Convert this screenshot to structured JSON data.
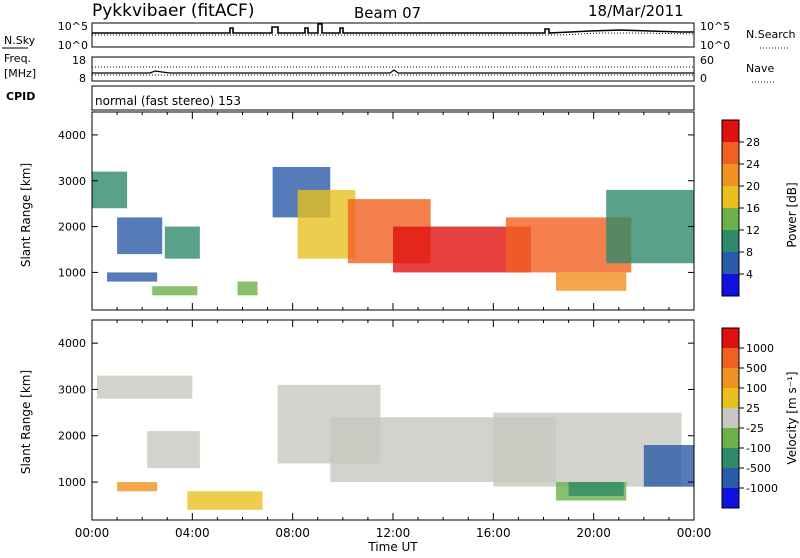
{
  "header": {
    "station": "Pykkvibaer (fitACF)",
    "beam": "Beam 07",
    "date": "18/Mar/2011"
  },
  "status_panels": {
    "noise_label": "N.Sky",
    "noise_right_label": "N.Search",
    "noise_ticks_left": [
      "10^5",
      "10^0"
    ],
    "noise_ticks_right": [
      "10^5",
      "10^0"
    ],
    "freq_label_1": "Freq.",
    "freq_label_2": "[MHz]",
    "freq_ticks": [
      "18",
      "8"
    ],
    "nave_label": "Nave",
    "nave_ticks": [
      "60",
      "0"
    ],
    "cpid_label": "CPID",
    "cpid_text": "normal (fast stereo) 153"
  },
  "chart_data": [
    {
      "type": "heatmap",
      "name": "power",
      "ylabel": "Slant Range [km]",
      "ylim": [
        180,
        4500
      ],
      "yticks": [
        1000,
        2000,
        3000,
        4000
      ],
      "xlim": [
        0,
        24
      ],
      "colorbar": {
        "title": "Power [dB]",
        "ticks": [
          "4",
          "8",
          "12",
          "16",
          "20",
          "24",
          "28"
        ],
        "colors": [
          "#1010e0",
          "#2a5aa8",
          "#2f8a6a",
          "#6cb04a",
          "#e8c020",
          "#f09020",
          "#f06020",
          "#e01010"
        ]
      },
      "regions": [
        {
          "x": [
            0.0,
            1.4
          ],
          "y": [
            2400,
            3200
          ],
          "level": 2
        },
        {
          "x": [
            1.0,
            2.8
          ],
          "y": [
            1400,
            2200
          ],
          "level": 1
        },
        {
          "x": [
            2.9,
            4.3
          ],
          "y": [
            1300,
            2000
          ],
          "level": 2
        },
        {
          "x": [
            0.6,
            2.6
          ],
          "y": [
            800,
            1000
          ],
          "level": 1
        },
        {
          "x": [
            2.4,
            4.2
          ],
          "y": [
            500,
            700
          ],
          "level": 3
        },
        {
          "x": [
            5.8,
            6.6
          ],
          "y": [
            500,
            800
          ],
          "level": 3
        },
        {
          "x": [
            7.2,
            9.5
          ],
          "y": [
            2200,
            3300
          ],
          "level": 1
        },
        {
          "x": [
            8.2,
            10.5
          ],
          "y": [
            1300,
            2800
          ],
          "level": 4
        },
        {
          "x": [
            10.2,
            13.5
          ],
          "y": [
            1200,
            2600
          ],
          "level": 6
        },
        {
          "x": [
            12.0,
            17.5
          ],
          "y": [
            1000,
            2000
          ],
          "level": 7
        },
        {
          "x": [
            16.5,
            21.5
          ],
          "y": [
            1000,
            2200
          ],
          "level": 6
        },
        {
          "x": [
            18.5,
            21.3
          ],
          "y": [
            600,
            1000
          ],
          "level": 5
        },
        {
          "x": [
            20.5,
            24.0
          ],
          "y": [
            1200,
            2800
          ],
          "level": 2
        }
      ]
    },
    {
      "type": "heatmap",
      "name": "velocity",
      "xlabel": "Time UT",
      "ylabel": "Slant Range [km]",
      "ylim": [
        180,
        4500
      ],
      "yticks": [
        1000,
        2000,
        3000,
        4000
      ],
      "xlim": [
        0,
        24
      ],
      "xticks": [
        "00:00",
        "04:00",
        "08:00",
        "12:00",
        "16:00",
        "20:00",
        "00:00"
      ],
      "colorbar": {
        "title": "Velocity [m s⁻¹]",
        "ticks": [
          "1000",
          "500",
          "100",
          "25",
          "-25",
          "-100",
          "-500",
          "-1000"
        ],
        "colors": [
          "#1010e0",
          "#2a5aa8",
          "#2f8a6a",
          "#6cb04a",
          "#c8c8c0",
          "#e8c020",
          "#f09020",
          "#f06020",
          "#e01010"
        ]
      },
      "regions": [
        {
          "x": [
            0.2,
            4.0
          ],
          "y": [
            2800,
            3300
          ],
          "color": 4
        },
        {
          "x": [
            2.2,
            4.3
          ],
          "y": [
            1300,
            2100
          ],
          "color": 4
        },
        {
          "x": [
            1.0,
            2.6
          ],
          "y": [
            800,
            1000
          ],
          "color": 6
        },
        {
          "x": [
            3.8,
            6.8
          ],
          "y": [
            400,
            800
          ],
          "color": 5
        },
        {
          "x": [
            7.4,
            11.5
          ],
          "y": [
            1400,
            3100
          ],
          "color": 4
        },
        {
          "x": [
            9.5,
            18.5
          ],
          "y": [
            1000,
            2400
          ],
          "color": 4
        },
        {
          "x": [
            16.0,
            23.5
          ],
          "y": [
            900,
            2500
          ],
          "color": 4
        },
        {
          "x": [
            18.5,
            21.3
          ],
          "y": [
            600,
            1000
          ],
          "color": 3
        },
        {
          "x": [
            19.0,
            21.2
          ],
          "y": [
            700,
            1000
          ],
          "color": 2
        },
        {
          "x": [
            22.0,
            24.0
          ],
          "y": [
            900,
            1800
          ],
          "color": 1
        }
      ]
    }
  ]
}
